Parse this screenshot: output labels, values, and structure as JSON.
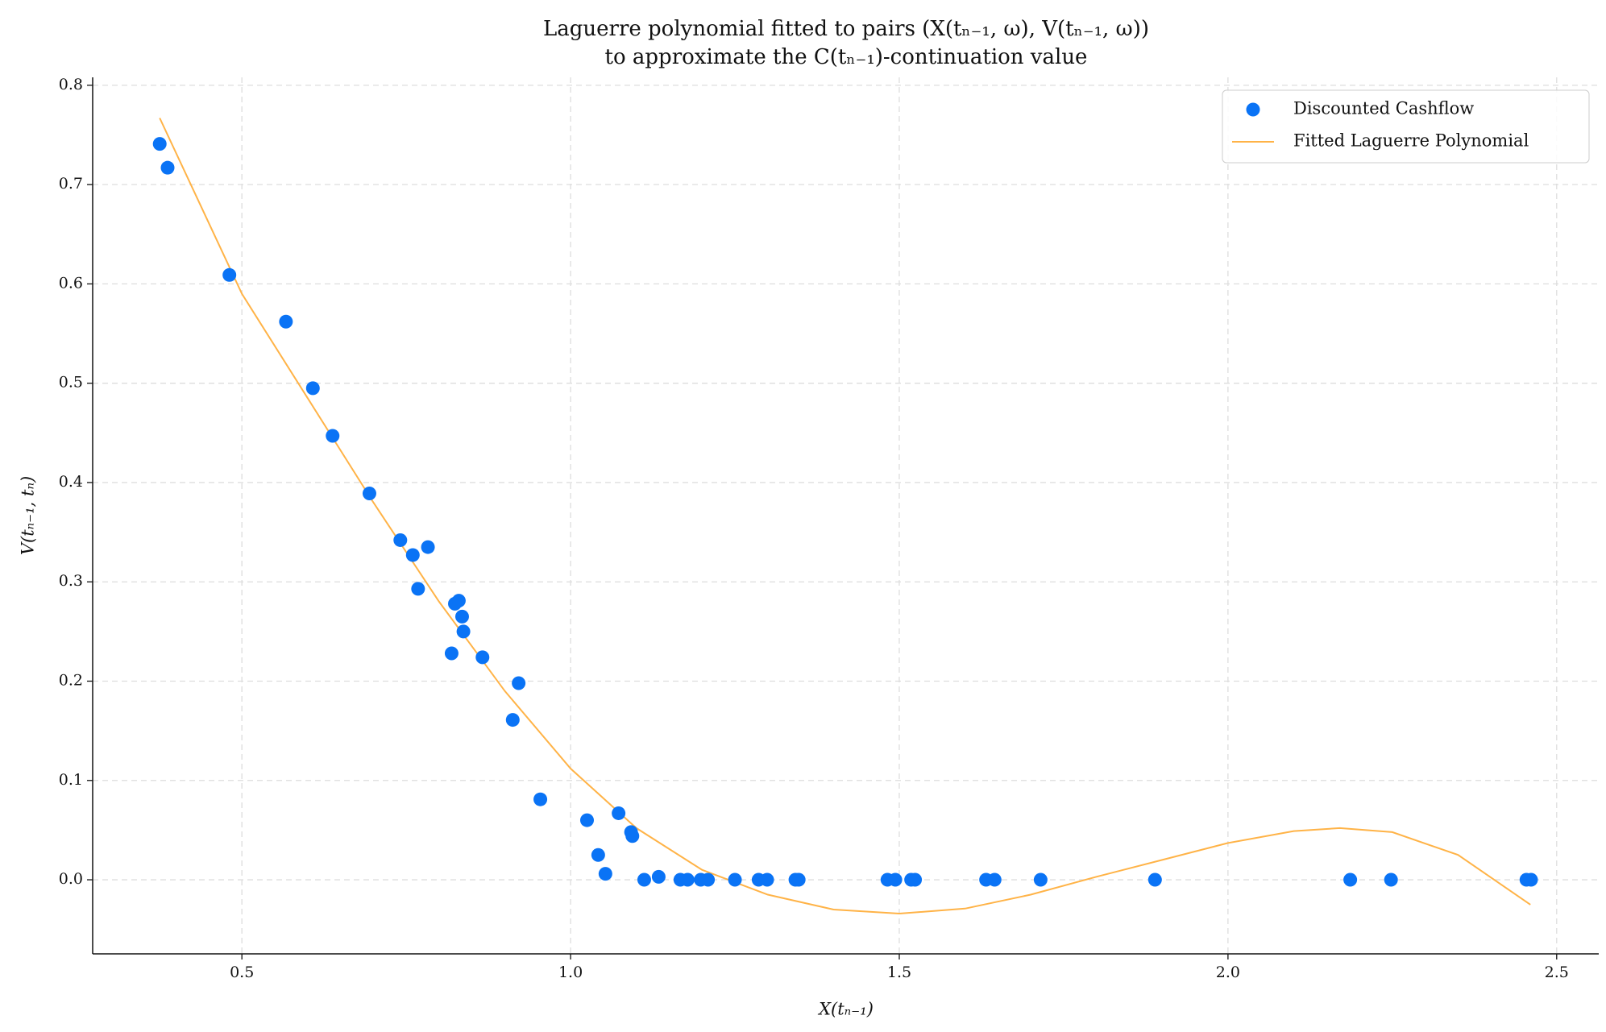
{
  "chart_data": {
    "type": "scatter",
    "title": "Laguerre polynomial fitted to pairs (X(tₙ₋₁, ω), V(tₙ₋₁, ω))",
    "subtitle": "to approximate the C(tₙ₋₁)-continuation value",
    "x_label": "X(tₙ₋₁)",
    "y_label": "V(tₙ₋₁, tₙ)",
    "xlim": [
      0.273,
      2.564
    ],
    "ylim": [
      -0.0746,
      0.808
    ],
    "xticks": [
      0.5,
      {
        "value": 1.0,
        "label": "1.0"
      },
      1.5,
      {
        "value": 2.0,
        "label": "2.0"
      },
      2.5
    ],
    "yticks": [
      {
        "value": 0.0,
        "label": "0.0"
      },
      0.1,
      0.2,
      0.3,
      0.4,
      0.5,
      0.6,
      0.7,
      0.8
    ],
    "grid": true,
    "legend": "upper right",
    "series": [
      {
        "name": "Discounted Cashflow",
        "type": "scatter",
        "color": "#0a73f5",
        "x": [
          0.375,
          0.387,
          0.481,
          0.567,
          0.608,
          0.638,
          0.694,
          0.741,
          0.76,
          0.783,
          0.768,
          0.824,
          0.83,
          0.835,
          0.837,
          0.819,
          0.866,
          0.921,
          0.912,
          0.954,
          1.025,
          1.073,
          1.092,
          1.094,
          1.042,
          1.053,
          1.112,
          1.134,
          1.167,
          1.178,
          1.198,
          1.209,
          1.25,
          1.286,
          1.299,
          1.342,
          1.347,
          1.482,
          1.494,
          1.518,
          1.524,
          1.632,
          1.645,
          1.715,
          1.889,
          2.186,
          2.248,
          2.454,
          2.461
        ],
        "values": [
          0.741,
          0.717,
          0.609,
          0.562,
          0.495,
          0.447,
          0.389,
          0.342,
          0.327,
          0.335,
          0.293,
          0.278,
          0.281,
          0.265,
          0.25,
          0.228,
          0.224,
          0.198,
          0.161,
          0.081,
          0.06,
          0.067,
          0.048,
          0.044,
          0.025,
          0.006,
          0,
          0.003,
          0,
          0,
          0,
          0,
          0,
          0,
          0,
          0,
          0,
          0,
          0,
          0,
          0,
          0,
          0,
          0,
          0,
          0,
          0,
          0,
          0
        ]
      },
      {
        "name": "Fitted Laguerre Polynomial",
        "type": "line",
        "color": "#ffb347",
        "x": [
          0.375,
          0.5,
          0.6,
          0.7,
          0.8,
          0.9,
          1.0,
          1.1,
          1.2,
          1.3,
          1.4,
          1.5,
          1.6,
          1.7,
          1.8,
          1.9,
          2.0,
          2.1,
          2.17,
          2.25,
          2.35,
          2.46
        ],
        "values": [
          0.767,
          0.59,
          0.485,
          0.38,
          0.28,
          0.19,
          0.112,
          0.052,
          0.01,
          -0.015,
          -0.03,
          -0.034,
          -0.029,
          -0.015,
          0.003,
          0.02,
          0.037,
          0.049,
          0.052,
          0.048,
          0.025,
          -0.025
        ]
      }
    ]
  }
}
